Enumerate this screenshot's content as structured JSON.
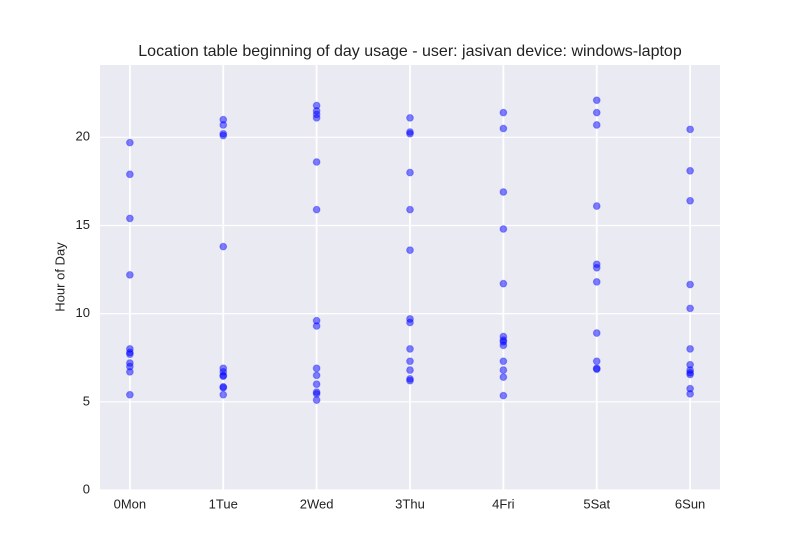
{
  "chart_data": {
    "type": "scatter",
    "title": "Location table beginning of day usage -  user: jasivan device: windows-laptop",
    "y_label": "Hour of Day",
    "categories": [
      "0Mon",
      "1Tue",
      "2Wed",
      "3Thu",
      "4Fri",
      "5Sat",
      "6Sun"
    ],
    "values": [
      [
        19.7,
        17.9,
        15.4,
        12.2,
        8.0,
        7.8,
        7.7,
        7.2,
        7.0,
        6.7,
        5.4
      ],
      [
        21.0,
        20.7,
        20.2,
        20.1,
        13.8,
        6.9,
        6.7,
        6.5,
        6.45,
        5.85,
        5.8,
        5.4
      ],
      [
        21.8,
        21.5,
        21.3,
        21.1,
        18.6,
        15.9,
        9.6,
        9.3,
        6.9,
        6.5,
        6.0,
        5.55,
        5.45,
        5.1
      ],
      [
        21.1,
        20.3,
        20.2,
        18.0,
        15.9,
        13.6,
        9.7,
        9.5,
        8.0,
        7.3,
        6.8,
        6.3,
        6.2
      ],
      [
        21.4,
        20.5,
        16.9,
        14.8,
        11.7,
        8.7,
        8.5,
        8.4,
        8.2,
        7.3,
        6.8,
        6.4,
        5.35
      ],
      [
        22.1,
        21.4,
        20.7,
        16.1,
        12.8,
        12.6,
        11.8,
        8.9,
        7.3,
        6.9,
        6.85
      ],
      [
        20.45,
        18.1,
        16.4,
        11.65,
        10.3,
        8.0,
        7.1,
        6.8,
        6.65,
        6.55,
        5.75,
        5.45
      ]
    ],
    "color": "#0000ff",
    "ylim": [
      0,
      24.1
    ],
    "yticks": [
      0,
      5,
      10,
      15,
      20
    ],
    "grid": true
  }
}
